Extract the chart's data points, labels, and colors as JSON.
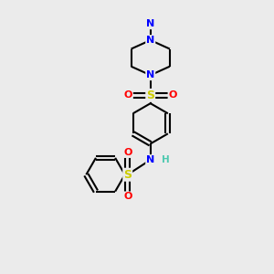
{
  "bg_color": "#ebebeb",
  "bond_color": "#000000",
  "atom_colors": {
    "N": "#0000ff",
    "S": "#cccc00",
    "O": "#ff0000",
    "H": "#4ec9b0",
    "C": "#000000"
  }
}
